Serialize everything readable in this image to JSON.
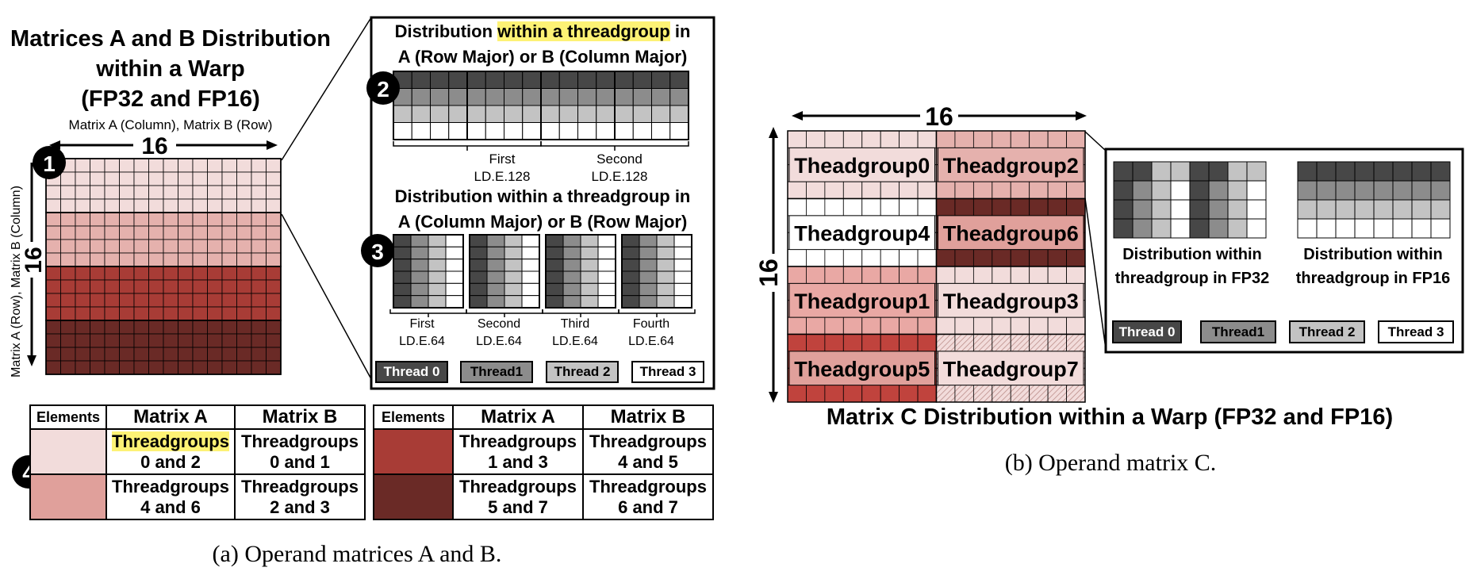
{
  "panel_a": {
    "title_lines": [
      "Matrices A and B Distribution",
      "within a Warp",
      "(FP32 and FP16)"
    ],
    "subtitle": "Matrix A (Column), Matrix B (Row)",
    "dim_top": "16",
    "dim_left": "16",
    "side_label": "Matrix A (Row), Matrix B (Column)",
    "badges": [
      "1",
      "2",
      "3",
      "4"
    ],
    "detail_title_1": {
      "pre": "Distribution ",
      "highlight": "within a threadgroup",
      "post": " in",
      "line2": "A (Row Major) or B (Column Major)"
    },
    "loads_128": [
      {
        "name": "First",
        "op": "LD.E.128"
      },
      {
        "name": "Second",
        "op": "LD.E.128"
      }
    ],
    "detail_title_2": {
      "line1": "Distribution within a threadgroup in",
      "line2": "A (Column Major) or B (Row Major)"
    },
    "loads_64": [
      {
        "name": "First",
        "op": "LD.E.64"
      },
      {
        "name": "Second",
        "op": "LD.E.64"
      },
      {
        "name": "Third",
        "op": "LD.E.64"
      },
      {
        "name": "Fourth",
        "op": "LD.E.64"
      }
    ],
    "threads": [
      "Thread 0",
      "Thread1",
      "Thread 2",
      "Thread 3"
    ],
    "caption": "(a) Operand matrices A and B."
  },
  "table_left": {
    "headers": [
      "Elements",
      "Matrix A",
      "Matrix B"
    ],
    "rows": [
      {
        "a1": "Threadgroups",
        "a2": "0 and 2",
        "b1": "Threadgroups",
        "b2": "0 and 1"
      },
      {
        "a1": "Threadgroups",
        "a2": "4 and 6",
        "b1": "Threadgroups",
        "b2": "2 and 3"
      }
    ]
  },
  "table_right": {
    "headers": [
      "Elements",
      "Matrix A",
      "Matrix B"
    ],
    "rows": [
      {
        "a1": "Threadgroups",
        "a2": "1 and 3",
        "b1": "Threadgroups",
        "b2": "4 and 5"
      },
      {
        "a1": "Threadgroups",
        "a2": "5 and 7",
        "b1": "Threadgroups",
        "b2": "6 and 7"
      }
    ]
  },
  "panel_b": {
    "dim_top": "16",
    "dim_left": "16",
    "groups": [
      "Theadgroup0",
      "Theadgroup2",
      "Theadgroup4",
      "Theadgroup6",
      "Theadgroup1",
      "Theadgroup3",
      "Theadgroup5",
      "Theadgroup7"
    ],
    "title": "Matrix C  Distribution within a Warp (FP32 and FP16)",
    "fp32_label": [
      "Distribution within",
      "threadgroup in FP32"
    ],
    "fp16_label": [
      "Distribution within",
      "threadgroup in FP16"
    ],
    "threads": [
      "Thread 0",
      "Thread1",
      "Thread 2",
      "Thread 3"
    ],
    "caption": "(b) Operand matrix C."
  },
  "colors": {
    "thread0": "#474747",
    "thread1": "#8c8c8c",
    "thread2": "#c3c3c3",
    "thread3": "#ffffff",
    "pink_light": "#f2dcdb",
    "pink_mid": "#e5b1ad",
    "red_dark": "#a83c36",
    "red_darker": "#6a2a26",
    "highlight": "#fdf275"
  }
}
